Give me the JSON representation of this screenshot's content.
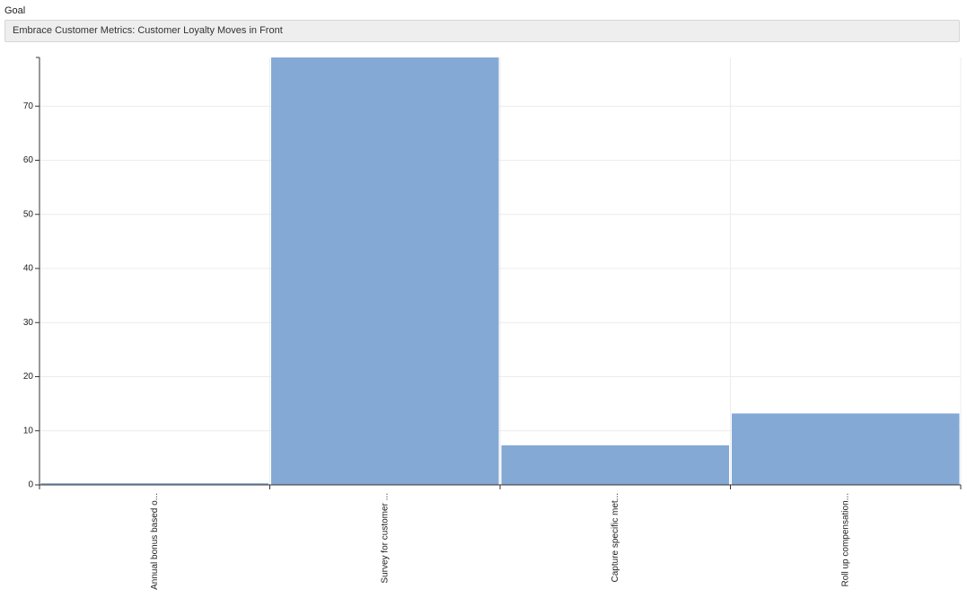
{
  "goal_label": "Goal",
  "goal_value": "Embrace Customer Metrics: Customer Loyalty Moves in Front",
  "chart_data": {
    "type": "bar",
    "categories": [
      "Annual bonus based o...",
      "Survey for customer ...",
      "Capture specific met...",
      "Roll up compensation..."
    ],
    "values": [
      0.3,
      79,
      7.3,
      13.2
    ],
    "color": "#84a9d5",
    "ylim": [
      0,
      79
    ],
    "yticks": [
      0,
      10,
      20,
      30,
      40,
      50,
      60,
      70
    ],
    "grid": true
  }
}
